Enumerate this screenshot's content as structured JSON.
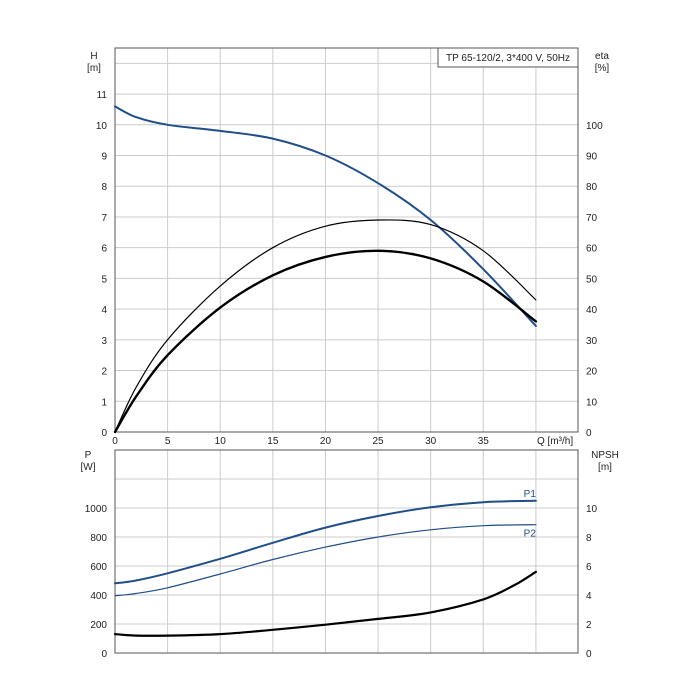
{
  "legend_label": "TP 65-120/2, 3*400 V, 50Hz",
  "top_left_axis": {
    "title": "H",
    "unit": "[m]"
  },
  "top_right_axis": {
    "title": "eta",
    "unit": "[%]"
  },
  "x_axis": {
    "title": "Q [m³/h]"
  },
  "bottom_left_axis": {
    "title": "P",
    "unit": "[W]"
  },
  "bottom_right_axis": {
    "title": "NPSH",
    "unit": "[m]"
  },
  "colors": {
    "blue": "#1f4e89",
    "black": "#000000",
    "grid": "#cccccc",
    "frame": "#555555"
  },
  "chart_data": [
    {
      "type": "line",
      "title": "TP 65-120/2, 3*400 V, 50Hz",
      "xlabel": "Q [m³/h]",
      "ylabel": "H [m]",
      "y2label": "eta [%]",
      "xlim": [
        0,
        44
      ],
      "ylim": [
        0,
        12.5
      ],
      "y2lim": [
        0,
        125
      ],
      "x_ticks": [
        0,
        5,
        10,
        15,
        20,
        25,
        30,
        35
      ],
      "y_ticks": [
        0,
        1,
        2,
        3,
        4,
        5,
        6,
        7,
        8,
        9,
        10,
        11
      ],
      "y2_ticks": [
        0,
        10,
        20,
        30,
        40,
        50,
        60,
        70,
        80,
        90,
        100
      ],
      "grid": true,
      "series": [
        {
          "axis": "left",
          "color": "#1f4e89",
          "width": 2,
          "points": [
            [
              0,
              10.6
            ],
            [
              2,
              10.25
            ],
            [
              5,
              10.0
            ],
            [
              10,
              9.8
            ],
            [
              15,
              9.55
            ],
            [
              20,
              9.0
            ],
            [
              25,
              8.1
            ],
            [
              30,
              6.9
            ],
            [
              35,
              5.3
            ],
            [
              40,
              3.45
            ]
          ]
        },
        {
          "axis": "right",
          "color": "#000000",
          "width": 1.2,
          "points": [
            [
              0,
              0
            ],
            [
              2,
              14.5
            ],
            [
              5,
              30
            ],
            [
              10,
              47.5
            ],
            [
              15,
              60
            ],
            [
              20,
              67
            ],
            [
              25,
              69
            ],
            [
              30,
              67.5
            ],
            [
              35,
              59
            ],
            [
              40,
              43
            ]
          ]
        },
        {
          "axis": "right",
          "color": "#000000",
          "width": 2.4,
          "points": [
            [
              0,
              0
            ],
            [
              2,
              11.5
            ],
            [
              5,
              25
            ],
            [
              10,
              40.5
            ],
            [
              15,
              51
            ],
            [
              20,
              57
            ],
            [
              25,
              59
            ],
            [
              30,
              56.5
            ],
            [
              35,
              49
            ],
            [
              40,
              36
            ]
          ]
        }
      ]
    },
    {
      "type": "line",
      "xlabel": "",
      "ylabel": "P [W]",
      "y2label": "NPSH [m]",
      "xlim": [
        0,
        44
      ],
      "ylim": [
        0,
        1400
      ],
      "y2lim": [
        0,
        14
      ],
      "y_ticks": [
        0,
        200,
        400,
        600,
        800,
        1000
      ],
      "y2_ticks": [
        0,
        2,
        4,
        6,
        8,
        10
      ],
      "grid": true,
      "series": [
        {
          "name": "P1",
          "axis": "left",
          "color": "#1f4e89",
          "width": 2,
          "points": [
            [
              0,
              480
            ],
            [
              2,
              500
            ],
            [
              5,
              550
            ],
            [
              10,
              650
            ],
            [
              15,
              760
            ],
            [
              20,
              865
            ],
            [
              25,
              945
            ],
            [
              30,
              1005
            ],
            [
              35,
              1040
            ],
            [
              40,
              1050
            ]
          ]
        },
        {
          "name": "P2",
          "axis": "left",
          "color": "#1f4e89",
          "width": 1.2,
          "points": [
            [
              0,
              395
            ],
            [
              2,
              410
            ],
            [
              5,
              450
            ],
            [
              10,
              545
            ],
            [
              15,
              645
            ],
            [
              20,
              730
            ],
            [
              25,
              800
            ],
            [
              30,
              850
            ],
            [
              35,
              878
            ],
            [
              40,
              885
            ]
          ]
        },
        {
          "axis": "right",
          "color": "#000000",
          "width": 2.2,
          "points": [
            [
              0,
              1.3
            ],
            [
              2,
              1.2
            ],
            [
              5,
              1.2
            ],
            [
              10,
              1.3
            ],
            [
              15,
              1.6
            ],
            [
              20,
              1.95
            ],
            [
              25,
              2.35
            ],
            [
              30,
              2.8
            ],
            [
              35,
              3.7
            ],
            [
              38,
              4.7
            ],
            [
              40,
              5.6
            ]
          ]
        }
      ]
    }
  ]
}
